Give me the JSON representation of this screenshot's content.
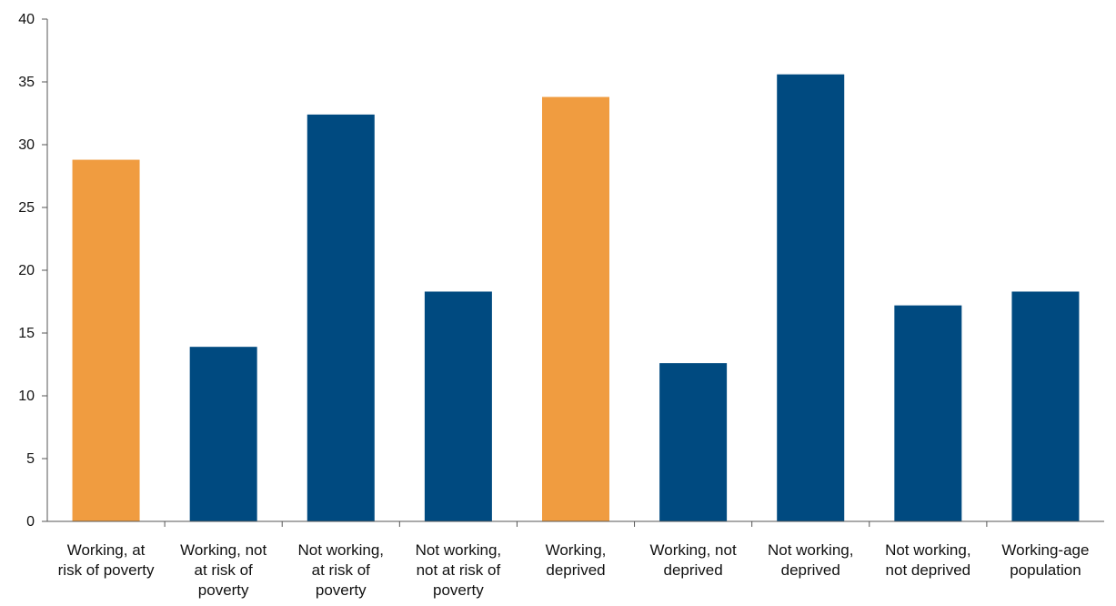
{
  "chart_data": {
    "type": "bar",
    "categories": [
      [
        "Working, at",
        "risk of poverty"
      ],
      [
        "Working, not",
        "at risk of",
        "poverty"
      ],
      [
        "Not working,",
        "at risk of",
        "poverty"
      ],
      [
        "Not working,",
        "not at risk of",
        "poverty"
      ],
      [
        "Working,",
        "deprived"
      ],
      [
        "Working, not",
        "deprived"
      ],
      [
        "Not working,",
        "deprived"
      ],
      [
        "Not working,",
        "not deprived"
      ],
      [
        "Working-age",
        "population"
      ]
    ],
    "values": [
      28.8,
      13.9,
      32.4,
      18.3,
      33.8,
      12.6,
      35.6,
      17.2,
      18.3
    ],
    "bar_colors": [
      "#f09c40",
      "#004a80",
      "#004a80",
      "#004a80",
      "#f09c40",
      "#004a80",
      "#004a80",
      "#004a80",
      "#004a80"
    ],
    "yticks": [
      "0",
      "5",
      "10",
      "15",
      "20",
      "25",
      "30",
      "35",
      "40"
    ],
    "ylim": [
      0,
      40
    ],
    "title": "",
    "xlabel": "",
    "ylabel": "",
    "grid": false,
    "legend": "none"
  }
}
